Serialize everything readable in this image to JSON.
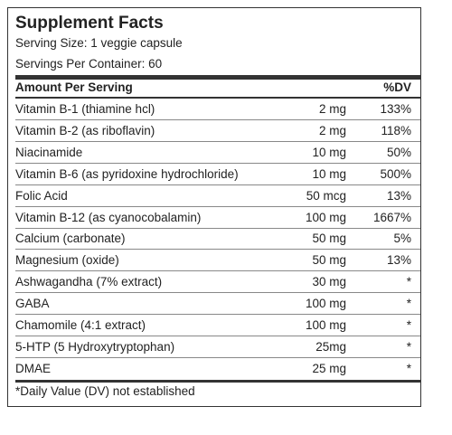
{
  "title": "Supplement Facts",
  "serving_size": "Serving Size: 1 veggie capsule",
  "servings_per_container": "Servings Per Container: 60",
  "header": {
    "amount": "Amount Per Serving",
    "dv": "%DV"
  },
  "rows": [
    [
      "Vitamin B-1 (thiamine hcl)",
      "2 mg",
      "133%"
    ],
    [
      "Vitamin B-2 (as riboflavin)",
      "2 mg",
      "118%"
    ],
    [
      "Niacinamide",
      "10 mg",
      "50%"
    ],
    [
      "Vitamin B-6 (as pyridoxine hydrochloride)",
      "10 mg",
      "500%"
    ],
    [
      "Folic Acid",
      "50 mcg",
      "13%"
    ],
    [
      "Vitamin B-12 (as cyanocobalamin)",
      "100 mg",
      "1667%"
    ],
    [
      "Calcium (carbonate)",
      "50 mg",
      "5%"
    ],
    [
      "Magnesium (oxide)",
      "50 mg",
      "13%"
    ],
    [
      "Ashwagandha (7% extract)",
      "30 mg",
      "*"
    ],
    [
      "GABA",
      "100 mg",
      "*"
    ],
    [
      "Chamomile (4:1 extract)",
      "100 mg",
      "*"
    ],
    [
      "5-HTP (5 Hydroxytryptophan)",
      "25mg",
      "*"
    ],
    [
      "DMAE",
      "25 mg",
      "*"
    ]
  ],
  "footnote": "*Daily Value (DV) not established"
}
